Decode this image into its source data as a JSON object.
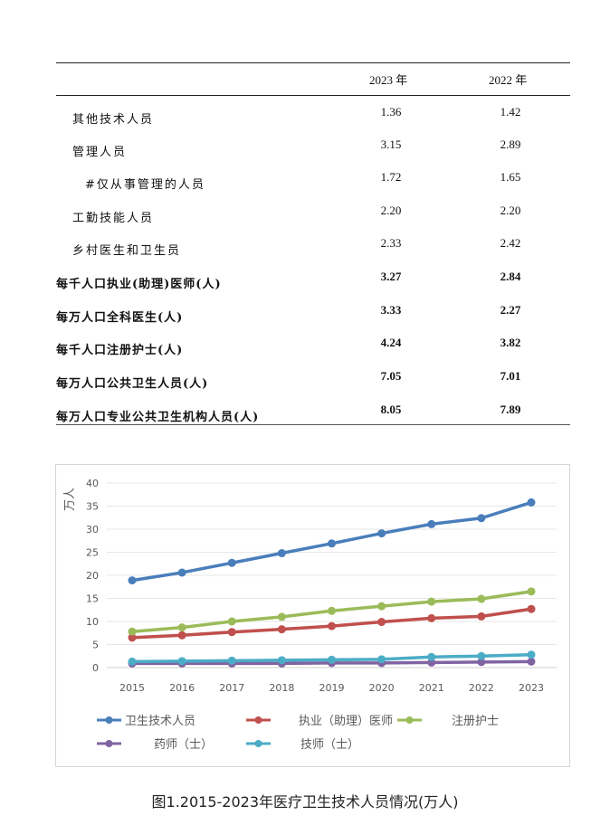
{
  "table": {
    "columns": [
      "",
      "2023 年",
      "2022 年"
    ],
    "rows": [
      {
        "label": "其他技术人员",
        "v2023": "1.36",
        "v2022": "1.42",
        "indent": 1,
        "bold": false
      },
      {
        "label": "管理人员",
        "v2023": "3.15",
        "v2022": "2.89",
        "indent": 1,
        "bold": false
      },
      {
        "label": "#仅从事管理的人员",
        "v2023": "1.72",
        "v2022": "1.65",
        "indent": 2,
        "bold": false
      },
      {
        "label": "工勤技能人员",
        "v2023": "2.20",
        "v2022": "2.20",
        "indent": 1,
        "bold": false
      },
      {
        "label": "乡村医生和卫生员",
        "v2023": "2.33",
        "v2022": "2.42",
        "indent": 1,
        "bold": false
      },
      {
        "label": "每千人口执业(助理)医师(人)",
        "v2023": "3.27",
        "v2022": "2.84",
        "indent": 0,
        "bold": true
      },
      {
        "label": "每万人口全科医生(人)",
        "v2023": "3.33",
        "v2022": "2.27",
        "indent": 0,
        "bold": true
      },
      {
        "label": "每千人口注册护士(人)",
        "v2023": "4.24",
        "v2022": "3.82",
        "indent": 0,
        "bold": true
      },
      {
        "label": "每万人口公共卫生人员(人)",
        "v2023": "7.05",
        "v2022": "7.01",
        "indent": 0,
        "bold": true
      },
      {
        "label": "每万人口专业公共卫生机构人员(人)",
        "v2023": "8.05",
        "v2022": "7.89",
        "indent": 0,
        "bold": true
      }
    ]
  },
  "chart_data": {
    "type": "line",
    "title": "图1.2015-2023年医疗卫生技术人员情况(万人)",
    "xlabel": "",
    "ylabel": "万人",
    "ylim": [
      0,
      40
    ],
    "yticks": [
      0,
      5,
      10,
      15,
      20,
      25,
      30,
      35,
      40
    ],
    "grid": true,
    "legend_position": "bottom",
    "x": [
      "2015",
      "2016",
      "2017",
      "2018",
      "2019",
      "2020",
      "2021",
      "2022",
      "2023"
    ],
    "series": [
      {
        "name": "卫生技术人员",
        "color": "#4a7ebb",
        "values": [
          18.9,
          20.6,
          22.7,
          24.8,
          26.9,
          29.1,
          31.1,
          32.4,
          35.8
        ]
      },
      {
        "name": "执业（助理）医师",
        "color": "#c0504d",
        "values": [
          6.5,
          7.0,
          7.7,
          8.3,
          9.0,
          9.9,
          10.7,
          11.1,
          12.7
        ]
      },
      {
        "name": "注册护士",
        "color": "#9bbb59",
        "values": [
          7.8,
          8.7,
          10.0,
          11.0,
          12.3,
          13.3,
          14.3,
          14.9,
          16.5
        ]
      },
      {
        "name": "药师（士）",
        "color": "#8064a2",
        "values": [
          0.9,
          0.9,
          0.9,
          0.9,
          1.0,
          1.0,
          1.1,
          1.2,
          1.3
        ]
      },
      {
        "name": "技师（士）",
        "color": "#4bacc6",
        "values": [
          1.3,
          1.4,
          1.5,
          1.6,
          1.7,
          1.8,
          2.3,
          2.5,
          2.8
        ]
      }
    ]
  },
  "caption": "图1.2015-2023年医疗卫生技术人员情况(万人)"
}
